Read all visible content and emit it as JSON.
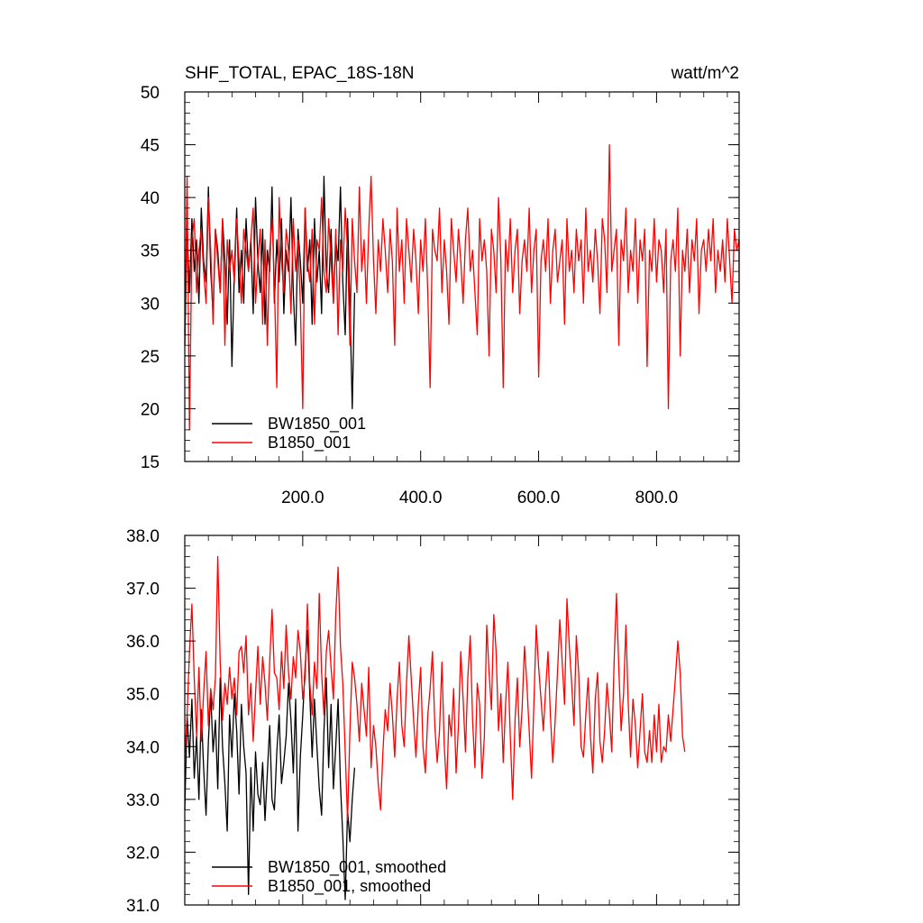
{
  "chart_data": [
    {
      "type": "line",
      "title": "SHF_TOTAL, EPAC_18S-18N",
      "units_label": "watt/m^2",
      "xlim": [
        0,
        940
      ],
      "ylim": [
        15,
        50
      ],
      "x_ticks": [
        200,
        400,
        600,
        800
      ],
      "x_tick_labels": [
        "200.0",
        "400.0",
        "600.0",
        "800.0"
      ],
      "y_ticks": [
        15,
        20,
        25,
        30,
        35,
        40,
        45,
        50
      ],
      "y_tick_labels": [
        "15",
        "20",
        "25",
        "30",
        "35",
        "40",
        "45",
        "50"
      ],
      "grid": false,
      "legend_position": "bottom-left",
      "series": [
        {
          "name": "BW1850_001",
          "color": "#000000",
          "x_start": 0,
          "x_end": 288,
          "x_step": 4,
          "values": [
            26,
            37,
            31,
            38,
            33,
            36,
            30,
            39,
            34,
            32,
            41,
            33,
            29,
            37,
            35,
            31,
            38,
            34,
            28,
            36,
            24,
            33,
            39,
            31,
            35,
            30,
            38,
            33,
            36,
            29,
            40,
            34,
            31,
            37,
            28,
            35,
            33,
            41,
            30,
            36,
            32,
            38,
            29,
            35,
            33,
            40,
            31,
            26,
            37,
            34,
            30,
            39,
            33,
            36,
            28,
            38,
            32,
            35,
            29,
            42,
            33,
            31,
            37,
            30,
            36,
            34,
            41,
            32,
            27,
            38,
            30,
            20,
            31
          ]
        },
        {
          "name": "B1850_001",
          "color": "#ff0000",
          "x_start": 0,
          "x_end": 940,
          "x_step": 4,
          "values": [
            27,
            42,
            18,
            36,
            38,
            31,
            35,
            37,
            33,
            30,
            40,
            35,
            28,
            37,
            34,
            31,
            38,
            26,
            36,
            33,
            35,
            32,
            38,
            34,
            30,
            37,
            35,
            33,
            36,
            39,
            30,
            34,
            37,
            28,
            36,
            26,
            35,
            38,
            32,
            22,
            40,
            34,
            31,
            37,
            35,
            29,
            38,
            33,
            36,
            30,
            20,
            39,
            34,
            32,
            37,
            28,
            36,
            35,
            40,
            33,
            31,
            38,
            34,
            30,
            37,
            27,
            36,
            33,
            39,
            35,
            26,
            38,
            34,
            31,
            41,
            33,
            36,
            30,
            37,
            42,
            34,
            29,
            36,
            33,
            38,
            35,
            31,
            37,
            34,
            26,
            39,
            33,
            36,
            30,
            38,
            35,
            32,
            37,
            34,
            29,
            36,
            33,
            38,
            31,
            22,
            37,
            35,
            34,
            39,
            31,
            36,
            33,
            28,
            38,
            35,
            32,
            37,
            34,
            30,
            36,
            39,
            33,
            35,
            31,
            27,
            38,
            34,
            36,
            33,
            25,
            37,
            35,
            31,
            40,
            34,
            22,
            36,
            33,
            38,
            31,
            35,
            37,
            29,
            34,
            36,
            33,
            39,
            31,
            35,
            37,
            23,
            34,
            36,
            33,
            38,
            30,
            35,
            37,
            32,
            34,
            36,
            28,
            38,
            33,
            35,
            31,
            37,
            34,
            36,
            30,
            39,
            33,
            35,
            32,
            37,
            34,
            29,
            38,
            36,
            31,
            45,
            33,
            35,
            37,
            26,
            36,
            34,
            39,
            31,
            35,
            33,
            38,
            30,
            36,
            34,
            37,
            24,
            35,
            33,
            38,
            32,
            36,
            35,
            31,
            37,
            20,
            34,
            36,
            33,
            39,
            25,
            35,
            33,
            37,
            31,
            36,
            34,
            38,
            29,
            35,
            36,
            33,
            37,
            34,
            38,
            31,
            35,
            33,
            36,
            32,
            38,
            34,
            30,
            37,
            35,
            36,
            31,
            34
          ]
        }
      ]
    },
    {
      "type": "line",
      "title": "",
      "xlim": [
        0,
        940
      ],
      "ylim": [
        31,
        38
      ],
      "x_ticks": [
        200,
        400,
        600,
        800
      ],
      "y_ticks": [
        31,
        32,
        33,
        34,
        35,
        36,
        37,
        38
      ],
      "y_tick_labels": [
        "31.0",
        "32.0",
        "33.0",
        "34.0",
        "35.0",
        "36.0",
        "37.0",
        "38.0"
      ],
      "grid": false,
      "legend_position": "bottom-left",
      "series": [
        {
          "name": "BW1850_001, smoothed",
          "color": "#000000",
          "x_start": 0,
          "x_end": 288,
          "x_step": 4,
          "values": [
            32.8,
            34.6,
            33.8,
            34.9,
            33.4,
            34.2,
            33.0,
            34.7,
            33.6,
            32.7,
            34.1,
            35.0,
            33.9,
            34.5,
            33.2,
            35.3,
            34.0,
            33.3,
            32.4,
            34.6,
            33.8,
            35.0,
            34.3,
            33.1,
            34.8,
            34.0,
            33.5,
            31.2,
            33.6,
            32.4,
            33.9,
            33.1,
            32.9,
            33.7,
            32.6,
            33.5,
            34.4,
            33.0,
            32.8,
            33.9,
            34.6,
            33.3,
            33.7,
            34.2,
            35.2,
            34.5,
            33.5,
            34.9,
            32.4,
            33.8,
            34.6,
            35.5,
            36.2,
            35.0,
            33.8,
            34.9,
            34.0,
            33.2,
            32.7,
            34.3,
            35.3,
            33.6,
            34.8,
            33.2,
            34.0,
            34.9,
            33.3,
            32.3,
            31.1,
            32.8,
            32.2,
            33.0,
            33.6
          ]
        },
        {
          "name": "B1850_001, smoothed",
          "color": "#ff0000",
          "x_start": 0,
          "x_end": 940,
          "x_step": 4,
          "values": [
            33.8,
            34.6,
            35.8,
            36.7,
            35.3,
            34.2,
            35.5,
            34.1,
            35.0,
            35.8,
            34.4,
            35.1,
            34.7,
            35.3,
            37.6,
            35.6,
            34.5,
            35.2,
            34.8,
            35.5,
            34.9,
            35.3,
            34.6,
            35.8,
            35.9,
            35.4,
            36.1,
            34.6,
            35.2,
            34.1,
            35.0,
            35.9,
            34.8,
            35.7,
            35.2,
            34.5,
            35.6,
            36.6,
            35.4,
            35.3,
            34.7,
            35.8,
            35.1,
            36.3,
            35.4,
            34.9,
            35.7,
            35.3,
            36.2,
            35.8,
            34.9,
            35.3,
            36.7,
            35.2,
            34.6,
            35.6,
            35.1,
            36.9,
            35.4,
            34.6,
            35.8,
            36.2,
            35.5,
            34.9,
            36.5,
            37.4,
            35.9,
            35.2,
            33.9,
            32.6,
            34.3,
            35.6,
            35.3,
            34.8,
            34.1,
            35.2,
            34.7,
            34.2,
            35.5,
            33.6,
            34.4,
            34.0,
            33.3,
            32.8,
            33.9,
            34.7,
            34.3,
            35.2,
            34.6,
            33.8,
            34.9,
            35.6,
            34.4,
            34.0,
            35.2,
            36.1,
            35.3,
            34.5,
            33.8,
            34.8,
            35.5,
            34.0,
            33.5,
            34.6,
            35.1,
            35.8,
            34.4,
            33.7,
            34.3,
            35.6,
            34.0,
            33.2,
            34.6,
            34.2,
            35.1,
            33.5,
            34.4,
            35.8,
            34.9,
            33.9,
            35.3,
            36.1,
            34.5,
            33.6,
            35.2,
            34.8,
            33.4,
            34.2,
            36.3,
            35.4,
            34.7,
            36.5,
            35.8,
            34.3,
            35.0,
            33.7,
            34.8,
            35.6,
            34.2,
            33.0,
            34.5,
            35.3,
            34.0,
            34.7,
            35.9,
            35.2,
            34.3,
            33.4,
            34.8,
            36.3,
            35.5,
            34.9,
            34.3,
            35.1,
            35.8,
            34.6,
            33.7,
            34.5,
            35.4,
            36.4,
            35.6,
            34.8,
            36.8,
            35.9,
            35.2,
            34.4,
            36.1,
            35.4,
            34.0,
            33.8,
            34.6,
            35.3,
            34.2,
            33.5,
            34.9,
            35.4,
            34.1,
            33.7,
            34.3,
            35.2,
            34.6,
            33.9,
            35.6,
            36.9,
            35.5,
            34.3,
            35.0,
            36.3,
            34.8,
            33.8,
            34.9,
            34.4,
            33.6,
            34.3,
            35.0,
            33.9,
            33.7,
            34.3,
            33.7,
            34.6,
            33.9,
            34.8,
            33.7,
            34.0,
            33.9,
            34.6,
            34.1,
            34.7,
            35.3,
            36.0,
            35.4,
            34.2,
            33.9
          ]
        }
      ]
    }
  ]
}
